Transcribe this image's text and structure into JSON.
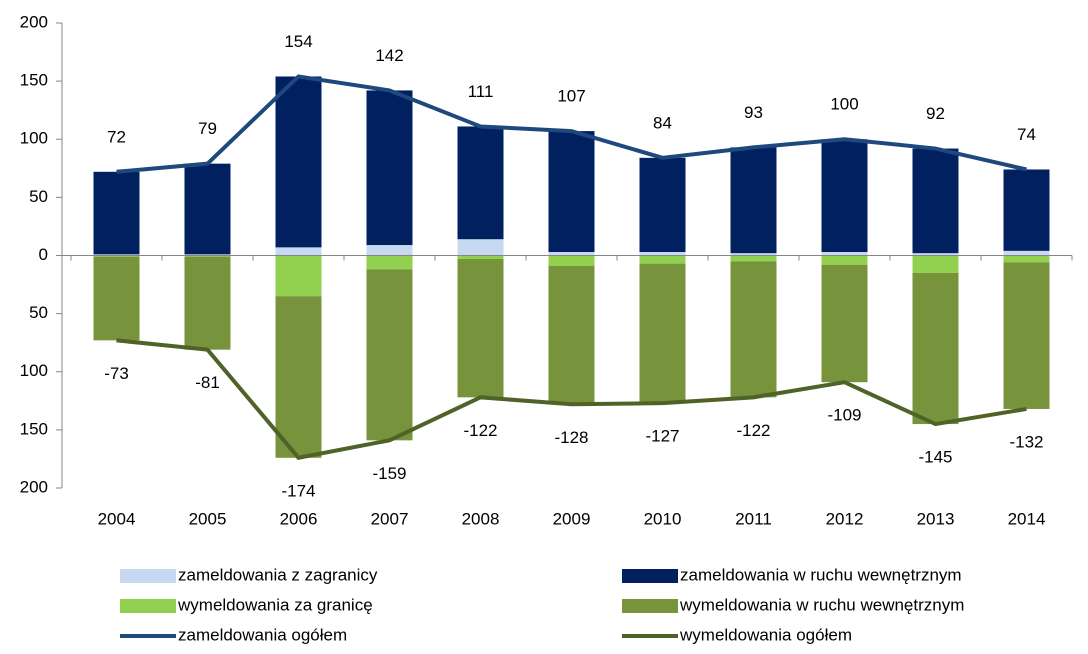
{
  "chart_data": {
    "type": "bar",
    "stacked": true,
    "categories": [
      "2004",
      "2005",
      "2006",
      "2007",
      "2008",
      "2009",
      "2010",
      "2011",
      "2012",
      "2013",
      "2014"
    ],
    "series": [
      {
        "name": "zameldowania z zagranicy",
        "color": "#c6d9f1",
        "type": "bar",
        "values": [
          1,
          1,
          7,
          9,
          14,
          3,
          3,
          2,
          3,
          2,
          4
        ]
      },
      {
        "name": "zameldowania w ruchu wewnętrznym",
        "color": "#002060",
        "type": "bar",
        "values": [
          71,
          78,
          147,
          133,
          97,
          104,
          81,
          91,
          97,
          90,
          70
        ]
      },
      {
        "name": "wymeldowania za granicę",
        "color": "#92d050",
        "type": "bar",
        "values": [
          -1,
          -1,
          -35,
          -12,
          -3,
          -9,
          -7,
          -5,
          -8,
          -15,
          -6
        ]
      },
      {
        "name": "wymeldowania w ruchu wewnętrznym",
        "color": "#77933c",
        "type": "bar",
        "values": [
          -72,
          -80,
          -139,
          -147,
          -119,
          -119,
          -120,
          -117,
          -101,
          -130,
          -126
        ]
      },
      {
        "name": "zameldowania ogółem",
        "color": "#1f497d",
        "type": "line",
        "values": [
          72,
          79,
          154,
          142,
          111,
          107,
          84,
          93,
          100,
          92,
          74
        ]
      },
      {
        "name": "wymeldowania ogółem",
        "color": "#4f6228",
        "type": "line",
        "values": [
          -73,
          -81,
          -174,
          -159,
          -122,
          -128,
          -127,
          -122,
          -109,
          -145,
          -132
        ]
      }
    ],
    "ylim": [
      -200,
      200
    ],
    "yticks": [
      {
        "value": -200,
        "label": "200"
      },
      {
        "value": -150,
        "label": "150"
      },
      {
        "value": -100,
        "label": "100"
      },
      {
        "value": -50,
        "label": "50"
      },
      0,
      50,
      100,
      150,
      200
    ],
    "grid": false
  }
}
